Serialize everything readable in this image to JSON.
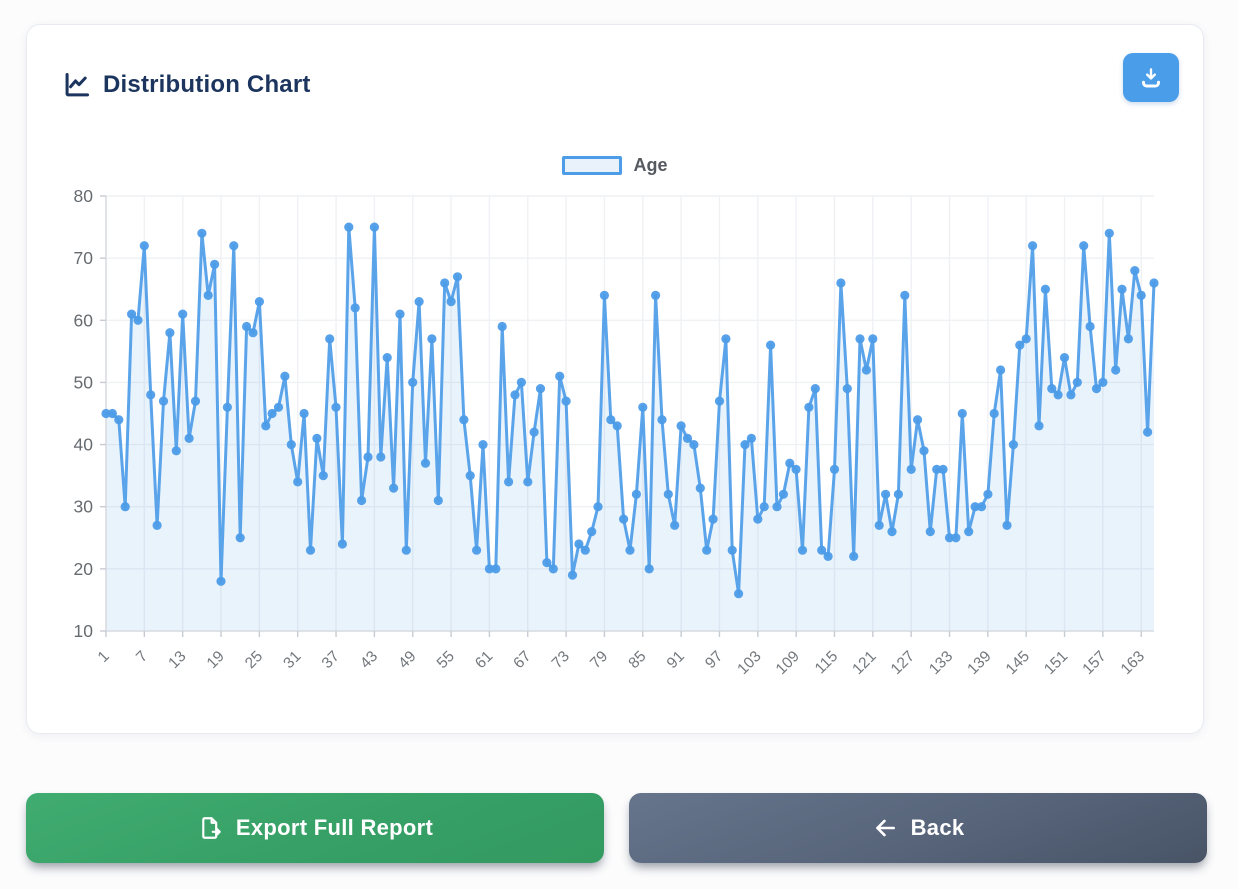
{
  "card": {
    "title": "Distribution Chart"
  },
  "legend": {
    "label": "Age"
  },
  "buttons": {
    "export_label": "Export Full Report",
    "back_label": "Back"
  },
  "colors": {
    "accent_blue": "#4d9ce8",
    "title_navy": "#1c355e",
    "export_green": "#38a268",
    "back_slate": "#57647a",
    "grid": "#eff1f4",
    "axis": "#d9dde3",
    "tick": "#c7ccd3",
    "y_label": "#666b70",
    "x_label": "#73787d",
    "area_fill": "rgba(77,156,232,0.12)"
  },
  "chart_data": {
    "type": "line",
    "title": "",
    "xlabel": "",
    "ylabel": "",
    "legend_position": "top",
    "grid": true,
    "ylim": [
      10,
      80
    ],
    "y_ticks": [
      10,
      20,
      30,
      40,
      50,
      60,
      70,
      80
    ],
    "x_tick_step": 6,
    "x_tick_labels": [
      "1",
      "7",
      "13",
      "19",
      "25",
      "31",
      "37",
      "43",
      "49",
      "55",
      "61",
      "67",
      "73",
      "79",
      "85",
      "91",
      "97",
      "103",
      "109",
      "115",
      "121",
      "127",
      "133",
      "139",
      "145",
      "151",
      "157",
      "163"
    ],
    "series": [
      {
        "name": "Age",
        "values": [
          45,
          45,
          44,
          30,
          61,
          60,
          72,
          48,
          27,
          47,
          58,
          39,
          61,
          41,
          47,
          74,
          64,
          69,
          18,
          46,
          72,
          25,
          59,
          58,
          63,
          43,
          45,
          46,
          51,
          40,
          34,
          45,
          23,
          41,
          35,
          57,
          46,
          24,
          75,
          62,
          31,
          38,
          75,
          38,
          54,
          33,
          61,
          23,
          50,
          63,
          37,
          57,
          31,
          66,
          63,
          67,
          44,
          35,
          23,
          40,
          20,
          20,
          59,
          34,
          48,
          50,
          34,
          42,
          49,
          21,
          20,
          51,
          47,
          19,
          24,
          23,
          26,
          30,
          64,
          44,
          43,
          28,
          23,
          32,
          46,
          20,
          64,
          44,
          32,
          27,
          43,
          41,
          40,
          33,
          23,
          28,
          47,
          57,
          23,
          16,
          40,
          41,
          28,
          30,
          56,
          30,
          32,
          37,
          36,
          23,
          46,
          49,
          23,
          22,
          36,
          66,
          49,
          22,
          57,
          52,
          57,
          27,
          32,
          26,
          32,
          64,
          36,
          44,
          39,
          26,
          36,
          36,
          25,
          25,
          45,
          26,
          30,
          30,
          32,
          45,
          52,
          27,
          40,
          56,
          57,
          72,
          43,
          65,
          49,
          48,
          54,
          48,
          50,
          72,
          59,
          49,
          50,
          74,
          52,
          65,
          57,
          68,
          64,
          42,
          66
        ]
      }
    ]
  }
}
